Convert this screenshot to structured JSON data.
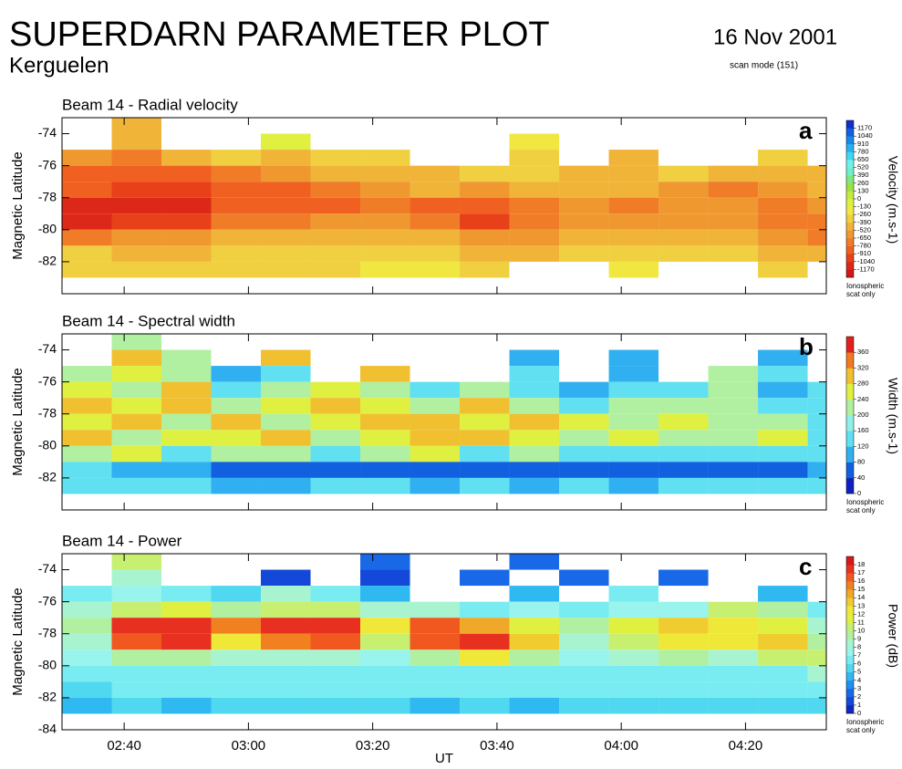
{
  "header": {
    "title": "SUPERDARN PARAMETER PLOT",
    "station": "Kerguelen",
    "date": "16 Nov 2001",
    "mode": "scan mode (151)"
  },
  "chart_data": [
    {
      "type": "heatmap",
      "title": "Beam 14 - Radial velocity",
      "annotation": "a",
      "ylabel": "Magnetic Latitude",
      "xlim": [
        150,
        273
      ],
      "ylim": [
        -84,
        -73
      ],
      "yticks": [
        -74,
        -76,
        -78,
        -80,
        -82
      ],
      "x_bins": [
        150,
        158,
        166,
        174,
        182,
        190,
        198,
        206,
        214,
        222,
        230,
        238,
        246,
        254,
        262,
        270,
        273
      ],
      "y_bins": [
        -73,
        -74,
        -75,
        -76,
        -77,
        -78,
        -79,
        -80,
        -81,
        -82,
        -83,
        -84
      ],
      "values": [
        [
          null,
          -400,
          null,
          null,
          null,
          null,
          null,
          null,
          null,
          null,
          null,
          null,
          null,
          null,
          null,
          null
        ],
        [
          null,
          -500,
          null,
          null,
          -100,
          null,
          null,
          null,
          null,
          -200,
          null,
          null,
          null,
          null,
          null,
          null
        ],
        [
          -600,
          -700,
          -500,
          -300,
          -400,
          -300,
          -300,
          null,
          null,
          -300,
          null,
          -400,
          null,
          null,
          -300,
          null
        ],
        [
          -800,
          -800,
          -800,
          -700,
          -600,
          -500,
          -500,
          -400,
          -300,
          -300,
          -400,
          -400,
          -300,
          -400,
          -500,
          -400
        ],
        [
          -900,
          -1000,
          -1000,
          -800,
          -900,
          -700,
          -600,
          -500,
          -600,
          -500,
          -400,
          -500,
          -600,
          -700,
          -600,
          -500
        ],
        [
          -1100,
          -1100,
          -1100,
          -900,
          -800,
          -800,
          -700,
          -900,
          -800,
          -700,
          -600,
          -700,
          -600,
          -600,
          -700,
          -600
        ],
        [
          -1100,
          -1000,
          -1000,
          -700,
          -700,
          -600,
          -600,
          -700,
          -1000,
          -700,
          -600,
          -600,
          -600,
          -600,
          -700,
          -700
        ],
        [
          -700,
          -600,
          -600,
          -500,
          -500,
          -400,
          -400,
          -500,
          -600,
          -600,
          -500,
          -500,
          -500,
          -500,
          -600,
          -700
        ],
        [
          -300,
          -400,
          -400,
          -300,
          -300,
          -300,
          -300,
          -300,
          -400,
          -400,
          -300,
          -300,
          -300,
          -300,
          -400,
          -500
        ],
        [
          -300,
          -300,
          -300,
          -300,
          -300,
          -300,
          -200,
          -200,
          -300,
          null,
          null,
          -200,
          null,
          null,
          -300,
          null
        ],
        [
          null,
          null,
          null,
          null,
          null,
          null,
          null,
          null,
          null,
          null,
          null,
          null,
          null,
          null,
          null,
          null
        ]
      ],
      "colorbar": {
        "label": "Velocity (m.s-1)",
        "note": [
          "Ionospheric",
          "scat only"
        ],
        "clim": [
          -1300,
          1300
        ],
        "ticks": [
          1170,
          1040,
          910,
          780,
          650,
          520,
          390,
          260,
          130,
          0,
          -130,
          -260,
          -390,
          -520,
          -650,
          -780,
          -910,
          -1040,
          -1170
        ],
        "colors": [
          "#d01818",
          "#dc2818",
          "#e84018",
          "#f06020",
          "#f07c28",
          "#f09830",
          "#f0b438",
          "#f0d040",
          "#f0e840",
          "#e0f040",
          "#c0ec40",
          "#a0e040",
          "#80e880",
          "#70f0c8",
          "#70f0f0",
          "#40d8f0",
          "#28b0f0",
          "#1888e8",
          "#1060e0",
          "#1030c8"
        ]
      }
    },
    {
      "type": "heatmap",
      "title": "Beam 14 - Spectral width",
      "annotation": "b",
      "ylabel": "Magnetic Latitude",
      "xlim": [
        150,
        273
      ],
      "ylim": [
        -84,
        -73
      ],
      "yticks": [
        -74,
        -76,
        -78,
        -80,
        -82
      ],
      "x_bins": [
        150,
        158,
        166,
        174,
        182,
        190,
        198,
        206,
        214,
        222,
        230,
        238,
        246,
        254,
        262,
        270,
        273
      ],
      "y_bins": [
        -73,
        -74,
        -75,
        -76,
        -77,
        -78,
        -79,
        -80,
        -81,
        -82,
        -83,
        -84
      ],
      "values": [
        [
          null,
          200,
          null,
          null,
          null,
          null,
          null,
          null,
          null,
          null,
          null,
          null,
          null,
          null,
          null,
          null
        ],
        [
          null,
          300,
          200,
          null,
          300,
          null,
          null,
          null,
          null,
          100,
          null,
          100,
          null,
          null,
          100,
          null
        ],
        [
          200,
          250,
          200,
          100,
          150,
          null,
          300,
          null,
          null,
          150,
          null,
          100,
          null,
          200,
          150,
          null
        ],
        [
          250,
          200,
          300,
          150,
          200,
          250,
          200,
          150,
          200,
          150,
          100,
          150,
          150,
          200,
          100,
          120
        ],
        [
          300,
          250,
          300,
          200,
          250,
          300,
          250,
          200,
          300,
          200,
          150,
          200,
          200,
          200,
          150,
          150
        ],
        [
          250,
          300,
          200,
          300,
          200,
          250,
          300,
          300,
          250,
          300,
          250,
          200,
          250,
          200,
          200,
          150
        ],
        [
          300,
          200,
          250,
          250,
          300,
          200,
          250,
          300,
          300,
          250,
          200,
          250,
          200,
          200,
          250,
          150
        ],
        [
          200,
          250,
          150,
          200,
          200,
          150,
          200,
          250,
          150,
          200,
          150,
          150,
          150,
          150,
          150,
          120
        ],
        [
          120,
          80,
          100,
          40,
          40,
          40,
          40,
          40,
          60,
          40,
          40,
          60,
          40,
          40,
          40,
          80
        ],
        [
          150,
          120,
          120,
          100,
          100,
          120,
          120,
          100,
          120,
          100,
          120,
          100,
          120,
          120,
          140,
          120
        ],
        [
          null,
          null,
          null,
          null,
          null,
          null,
          null,
          null,
          null,
          null,
          null,
          null,
          null,
          null,
          null,
          null
        ]
      ],
      "colorbar": {
        "label": "Width (m.s-1)",
        "note": [
          "Ionospheric",
          "scat only"
        ],
        "clim": [
          0,
          400
        ],
        "ticks": [
          360,
          320,
          280,
          240,
          200,
          160,
          120,
          80,
          40,
          0
        ],
        "colors": [
          "#1020c0",
          "#1060e0",
          "#30b0f0",
          "#60e0f0",
          "#90f0e8",
          "#b0f0a0",
          "#e0f040",
          "#f0c030",
          "#f07820",
          "#e02020"
        ]
      }
    },
    {
      "type": "heatmap",
      "title": "Beam 14 - Power",
      "annotation": "c",
      "ylabel": "Magnetic Latitude",
      "xlabel": "UT",
      "xlim": [
        150,
        273
      ],
      "ylim": [
        -84,
        -73
      ],
      "yticks": [
        -74,
        -76,
        -78,
        -80,
        -82,
        -84
      ],
      "xticks": [
        {
          "value": 160,
          "label": "02:40"
        },
        {
          "value": 180,
          "label": "03:00"
        },
        {
          "value": 200,
          "label": "03:20"
        },
        {
          "value": 220,
          "label": "03:40"
        },
        {
          "value": 240,
          "label": "04:00"
        },
        {
          "value": 260,
          "label": "04:20"
        }
      ],
      "x_bins": [
        150,
        158,
        166,
        174,
        182,
        190,
        198,
        206,
        214,
        222,
        230,
        238,
        246,
        254,
        262,
        270,
        273
      ],
      "y_bins": [
        -73,
        -74,
        -75,
        -76,
        -77,
        -78,
        -79,
        -80,
        -81,
        -82,
        -83,
        -84
      ],
      "values": [
        [
          null,
          10,
          null,
          null,
          null,
          null,
          2,
          null,
          null,
          2,
          null,
          null,
          null,
          null,
          null,
          null
        ],
        [
          null,
          8,
          null,
          null,
          1,
          null,
          1,
          null,
          2,
          null,
          2,
          null,
          2,
          null,
          null,
          null
        ],
        [
          6,
          7,
          6,
          5,
          8,
          6,
          4,
          null,
          null,
          4,
          null,
          6,
          null,
          null,
          4,
          null
        ],
        [
          8,
          10,
          11,
          9,
          10,
          10,
          8,
          8,
          6,
          7,
          6,
          7,
          7,
          10,
          9,
          6
        ],
        [
          9,
          17,
          17,
          15,
          17,
          17,
          12,
          16,
          14,
          11,
          9,
          11,
          13,
          12,
          11,
          8
        ],
        [
          8,
          16,
          17,
          12,
          15,
          16,
          10,
          16,
          17,
          13,
          8,
          10,
          12,
          12,
          13,
          9
        ],
        [
          7,
          9,
          9,
          8,
          8,
          8,
          7,
          9,
          12,
          9,
          7,
          8,
          9,
          8,
          10,
          10
        ],
        [
          6,
          6,
          6,
          6,
          6,
          6,
          6,
          6,
          6,
          6,
          6,
          6,
          6,
          6,
          6,
          8
        ],
        [
          5,
          6,
          6,
          6,
          6,
          6,
          6,
          6,
          6,
          6,
          6,
          6,
          6,
          6,
          6,
          6
        ],
        [
          4,
          5,
          4,
          5,
          5,
          5,
          5,
          4,
          5,
          4,
          5,
          5,
          5,
          5,
          5,
          5
        ],
        [
          null,
          null,
          null,
          null,
          null,
          null,
          null,
          null,
          null,
          null,
          null,
          null,
          null,
          null,
          null,
          null
        ]
      ],
      "colorbar": {
        "label": "Power (dB)",
        "note": [
          "Ionospheric",
          "scat only"
        ],
        "clim": [
          0,
          19
        ],
        "ticks": [
          18,
          17,
          16,
          15,
          14,
          13,
          12,
          11,
          10,
          9,
          8,
          7,
          6,
          5,
          4,
          3,
          2,
          1,
          0
        ],
        "colors": [
          "#1028c0",
          "#1448d8",
          "#1868e8",
          "#2090f0",
          "#30b8f0",
          "#50d8f0",
          "#78ecf0",
          "#98f4ec",
          "#a8f4d0",
          "#b0f0a0",
          "#c8f070",
          "#e0f040",
          "#f0e838",
          "#f0cc30",
          "#f0a828",
          "#f08020",
          "#f05820",
          "#e83020",
          "#d81818"
        ]
      }
    }
  ]
}
